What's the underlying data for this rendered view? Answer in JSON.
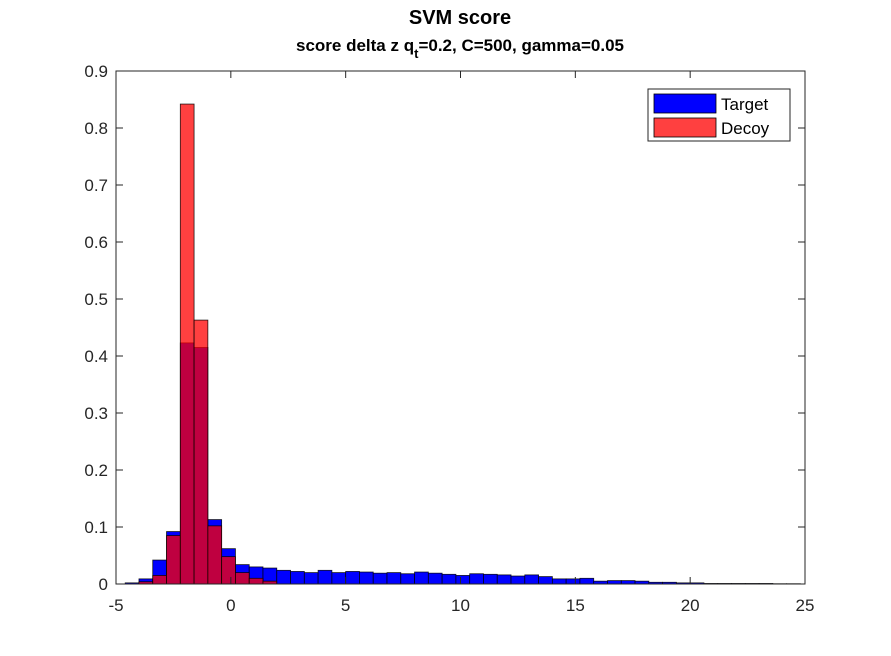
{
  "chart_data": {
    "type": "bar",
    "title": "SVM score",
    "subtitle": {
      "prefix": "score delta z q",
      "subscript": "t",
      "suffix": "=0.2, C=500, gamma=0.05"
    },
    "xlabel": "",
    "ylabel": "",
    "xlim": [
      -5,
      25
    ],
    "ylim": [
      0,
      0.9
    ],
    "x_ticks": [
      -5,
      0,
      5,
      10,
      15,
      20,
      25
    ],
    "x_tick_labels": [
      "-5",
      "0",
      "5",
      "10",
      "15",
      "20",
      "25"
    ],
    "y_ticks": [
      0,
      0.1,
      0.2,
      0.3,
      0.4,
      0.5,
      0.6,
      0.7,
      0.8,
      0.9
    ],
    "y_tick_labels": [
      "0",
      "0.1",
      "0.2",
      "0.3",
      "0.4",
      "0.5",
      "0.6",
      "0.7",
      "0.8",
      "0.9"
    ],
    "grid": false,
    "legend_position": "top-right",
    "series": [
      {
        "name": "Target",
        "color": "#0000ff",
        "bin_edges": [
          -4.6,
          -4.0,
          -3.4,
          -2.8,
          -2.2,
          -1.6,
          -1.0,
          -0.4,
          0.2,
          0.8,
          1.4,
          2.0,
          2.6,
          3.2,
          3.8,
          4.4,
          5.0,
          5.6,
          6.2,
          6.8,
          7.4,
          8.0,
          8.6,
          9.2,
          9.8,
          10.4,
          11.0,
          11.6,
          12.2,
          12.8,
          13.4,
          14.0,
          14.6,
          15.2,
          15.8,
          16.4,
          17.0,
          17.6,
          18.2,
          18.8,
          19.4,
          20.0,
          20.6,
          21.2,
          21.8,
          22.4,
          23.0,
          23.6,
          24.2,
          24.8
        ],
        "values": [
          0.002,
          0.009,
          0.042,
          0.092,
          0.423,
          0.415,
          0.113,
          0.062,
          0.034,
          0.03,
          0.028,
          0.024,
          0.022,
          0.02,
          0.024,
          0.02,
          0.022,
          0.021,
          0.019,
          0.02,
          0.018,
          0.021,
          0.019,
          0.017,
          0.015,
          0.018,
          0.017,
          0.016,
          0.014,
          0.016,
          0.013,
          0.009,
          0.009,
          0.01,
          0.005,
          0.006,
          0.006,
          0.005,
          0.003,
          0.003,
          0.002,
          0.002,
          0.001,
          0.001,
          0.001,
          0.001,
          0.001,
          0.0005,
          0.0005
        ]
      },
      {
        "name": "Decoy",
        "color": "#ff0000",
        "opacity": 0.75,
        "bin_edges": [
          -4.0,
          -3.4,
          -2.8,
          -2.2,
          -1.6,
          -1.0,
          -0.4,
          0.2,
          0.8,
          1.4,
          2.0
        ],
        "values": [
          0.004,
          0.015,
          0.085,
          0.842,
          0.463,
          0.102,
          0.048,
          0.02,
          0.01,
          0.005
        ]
      }
    ]
  }
}
